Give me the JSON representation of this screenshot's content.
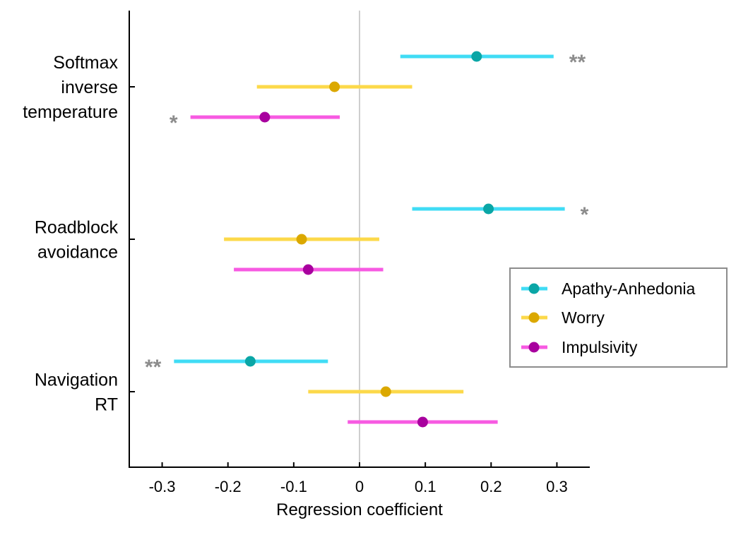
{
  "chart_data": {
    "type": "scatter",
    "subtype": "forest-plot",
    "title": "",
    "xlabel": "Regression coefficient",
    "ylabel": "",
    "xlim": [
      -0.35,
      0.35
    ],
    "xticks": [
      -0.3,
      -0.2,
      -0.1,
      0,
      0.1,
      0.2,
      0.3
    ],
    "xtick_labels": [
      "-0.3",
      "-0.2",
      "-0.1",
      "0",
      "0.1",
      "0.2",
      "0.3"
    ],
    "reference_line": 0,
    "grid": false,
    "legend_position": "right",
    "categories": [
      {
        "label_lines": [
          "Softmax",
          "inverse",
          "temperature"
        ]
      },
      {
        "label_lines": [
          "Roadblock",
          "avoidance"
        ]
      },
      {
        "label_lines": [
          "Navigation",
          "RT"
        ]
      }
    ],
    "series": [
      {
        "name": "Apathy-Anhedonia",
        "line_color": "#40dcf5",
        "marker_color": "#0aa6a6",
        "estimates": [
          0.178,
          0.196,
          -0.166
        ],
        "ci_low": [
          0.062,
          0.08,
          -0.282
        ],
        "ci_high": [
          0.295,
          0.312,
          -0.048
        ],
        "significance": [
          "**",
          "*",
          "**"
        ]
      },
      {
        "name": "Worry",
        "line_color": "#fcd94a",
        "marker_color": "#dba800",
        "estimates": [
          -0.038,
          -0.088,
          0.04
        ],
        "ci_low": [
          -0.156,
          -0.206,
          -0.078
        ],
        "ci_high": [
          0.08,
          0.03,
          0.158
        ],
        "significance": [
          "",
          "",
          ""
        ]
      },
      {
        "name": "Impulsivity",
        "line_color": "#f75ae2",
        "marker_color": "#a8009e",
        "estimates": [
          -0.144,
          -0.078,
          0.096
        ],
        "ci_low": [
          -0.257,
          -0.191,
          -0.018
        ],
        "ci_high": [
          -0.03,
          0.036,
          0.21
        ],
        "significance": [
          "*",
          "",
          ""
        ]
      }
    ]
  }
}
